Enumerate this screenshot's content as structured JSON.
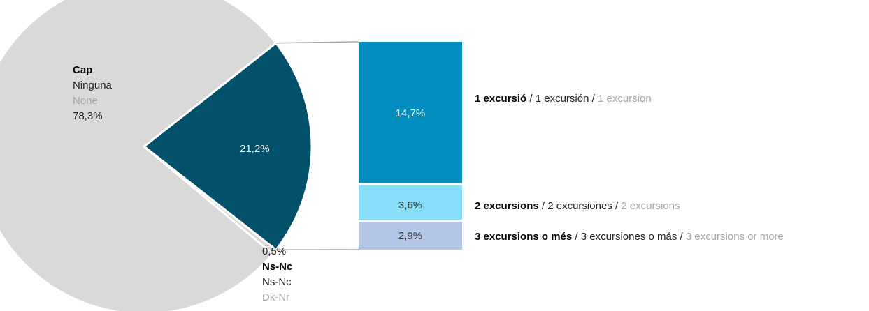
{
  "chart_data": {
    "type": "pie",
    "pie": {
      "slices": [
        {
          "key": "cap",
          "value": 78.3,
          "value_label": "78,3%",
          "label_ca": "Cap",
          "label_es": "Ninguna",
          "label_en": "None",
          "color": "#d9d9d9"
        },
        {
          "key": "excursions",
          "value": 21.2,
          "value_label": "21,2%",
          "color": "#03506a"
        },
        {
          "key": "nsnc",
          "value": 0.5,
          "value_label": "0,5%",
          "label_ca": "Ns-Nc",
          "label_es": "Ns-Nc",
          "label_en": "Dk-Nr",
          "color": "#d9d9d9"
        }
      ]
    },
    "breakdown": {
      "type": "stacked-bar",
      "segments": [
        {
          "value": 14.7,
          "value_label": "14,7%",
          "label_ca": "1 excursió",
          "label_es": "1 excursión",
          "label_en": "1 excursion",
          "color": "#028dbe",
          "text_color": "#ffffff"
        },
        {
          "value": 3.6,
          "value_label": "3,6%",
          "label_ca": "2 excursions",
          "label_es": "2 excursiones",
          "label_en": "2 excursions",
          "color": "#87def8",
          "text_color": "#333333"
        },
        {
          "value": 2.9,
          "value_label": "2,9%",
          "label_ca": "3 excursions o més",
          "label_es": "3 excursiones o más",
          "label_en": "3 excursions or more",
          "color": "#b4c6e7",
          "text_color": "#333333"
        }
      ]
    }
  }
}
